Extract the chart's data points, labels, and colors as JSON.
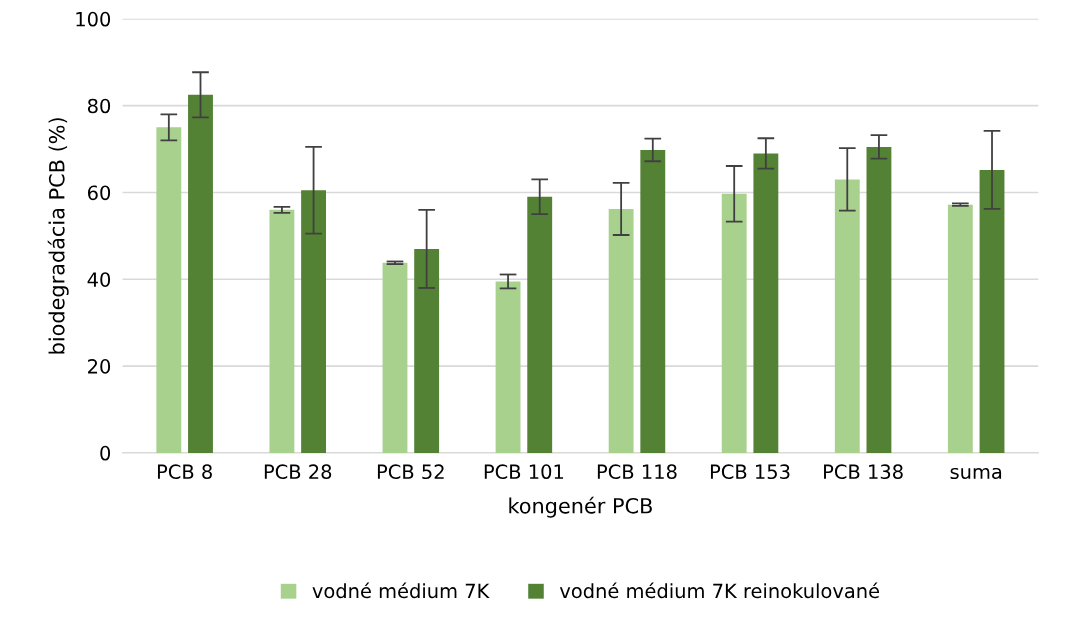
{
  "chart_data": {
    "type": "bar",
    "xlabel": "kongenér PCB",
    "ylabel": "biodegradácia PCB (%)",
    "categories": [
      "PCB 8",
      "PCB 28",
      "PCB 52",
      "PCB 101",
      "PCB 118",
      "PCB 153",
      "PCB 138",
      "suma"
    ],
    "series": [
      {
        "name": "vodné médium 7K",
        "color": "#a9d18e",
        "values": [
          75,
          56,
          43.8,
          39.5,
          56.2,
          59.7,
          63,
          57.2
        ],
        "errors": [
          3,
          0.7,
          0.3,
          1.6,
          6,
          6.4,
          7.2,
          0.3
        ]
      },
      {
        "name": "vodné médium 7K reinokulované",
        "color": "#548235",
        "values": [
          82.5,
          60.5,
          47,
          59,
          69.8,
          69,
          70.5,
          65.2
        ],
        "errors": [
          5.2,
          10,
          9,
          4,
          2.6,
          3.5,
          2.7,
          9
        ]
      }
    ],
    "ylim": [
      0,
      100
    ],
    "yticks": [
      0,
      20,
      40,
      60,
      80,
      100
    ],
    "grid": "y",
    "legend": "bottom"
  }
}
